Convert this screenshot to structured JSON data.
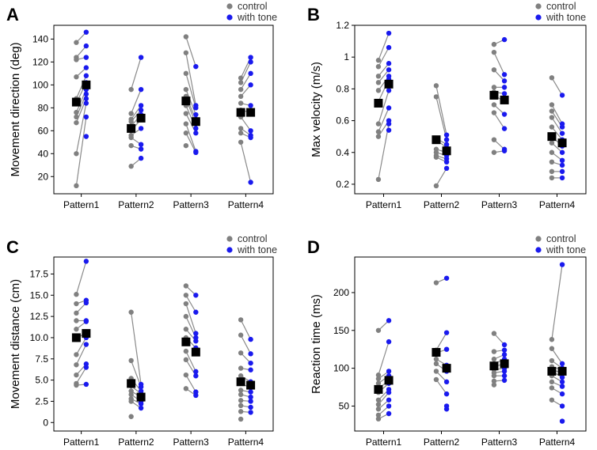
{
  "colors": {
    "control": "#808080",
    "tone": "#1a1aee",
    "mean": "#000000",
    "line": "#8a8a8a"
  },
  "chart_data": [
    {
      "type": "scatter",
      "panel_letter": "A",
      "ylabel": "Movement direction (deg)",
      "categories": [
        "Pattern1",
        "Pattern2",
        "Pattern3",
        "Pattern4"
      ],
      "ylim": [
        5,
        152
      ],
      "yticks": [
        20,
        40,
        60,
        80,
        100,
        120,
        140
      ],
      "legend": [
        "control",
        "with tone"
      ],
      "series": [
        {
          "name": "control",
          "values": [
            [
              137,
              124,
              122,
              107,
              88,
              84,
              76,
              72,
              67,
              40,
              12
            ],
            [
              96,
              75,
              70,
              68,
              64,
              60,
              56,
              54,
              47,
              29
            ],
            [
              142,
              128,
              110,
              96,
              90,
              88,
              82,
              75,
              66,
              58,
              47
            ],
            [
              106,
              102,
              96,
              90,
              84,
              78,
              72,
              62,
              58,
              50
            ]
          ]
        },
        {
          "name": "with tone",
          "values": [
            [
              146,
              134,
              124,
              115,
              108,
              102,
              96,
              92,
              88,
              84,
              72,
              55
            ],
            [
              124,
              96,
              82,
              78,
              74,
              70,
              62,
              48,
              44,
              36
            ],
            [
              116,
              82,
              80,
              74,
              70,
              66,
              62,
              58,
              42,
              41
            ],
            [
              124,
              120,
              110,
              100,
              82,
              76,
              60,
              56,
              54,
              15
            ]
          ]
        },
        {
          "name": "mean",
          "values": [
            [
              85,
              100
            ],
            [
              62,
              71
            ],
            [
              86,
              68
            ],
            [
              76,
              76
            ]
          ]
        }
      ]
    },
    {
      "type": "scatter",
      "panel_letter": "B",
      "ylabel": "Max velocity (m/s)",
      "categories": [
        "Pattern1",
        "Pattern2",
        "Pattern3",
        "Pattern4"
      ],
      "ylim": [
        0.14,
        1.2
      ],
      "yticks": [
        0.2,
        0.4,
        0.6,
        0.8,
        1.0,
        1.2
      ],
      "legend": [
        "control",
        "with tone"
      ],
      "series": [
        {
          "name": "control",
          "values": [
            [
              0.98,
              0.94,
              0.88,
              0.84,
              0.79,
              0.72,
              0.58,
              0.53,
              0.5,
              0.23
            ],
            [
              0.82,
              0.75,
              0.49,
              0.48,
              0.42,
              0.4,
              0.38,
              0.37,
              0.19
            ],
            [
              1.08,
              1.03,
              0.92,
              0.81,
              0.78,
              0.76,
              0.7,
              0.65,
              0.48,
              0.4
            ],
            [
              0.87,
              0.7,
              0.66,
              0.62,
              0.56,
              0.5,
              0.46,
              0.4,
              0.34,
              0.28,
              0.24
            ]
          ]
        },
        {
          "name": "with tone",
          "values": [
            [
              1.15,
              1.06,
              0.96,
              0.92,
              0.88,
              0.86,
              0.79,
              0.68,
              0.6,
              0.58,
              0.54
            ],
            [
              0.51,
              0.48,
              0.45,
              0.43,
              0.4,
              0.38,
              0.36,
              0.34,
              0.3
            ],
            [
              1.11,
              0.89,
              0.85,
              0.81,
              0.77,
              0.72,
              0.64,
              0.55,
              0.42,
              0.41
            ],
            [
              0.76,
              0.58,
              0.56,
              0.52,
              0.48,
              0.44,
              0.4,
              0.35,
              0.32,
              0.28,
              0.24
            ]
          ]
        },
        {
          "name": "mean",
          "values": [
            [
              0.71,
              0.83
            ],
            [
              0.48,
              0.41
            ],
            [
              0.76,
              0.73
            ],
            [
              0.5,
              0.46
            ]
          ]
        }
      ]
    },
    {
      "type": "scatter",
      "panel_letter": "C",
      "ylabel": "Movement distance (cm)",
      "categories": [
        "Pattern1",
        "Pattern2",
        "Pattern3",
        "Pattern4"
      ],
      "ylim": [
        -1,
        19.5
      ],
      "yticks": [
        0.0,
        2.5,
        5.0,
        7.5,
        10.0,
        12.5,
        15.0,
        17.5
      ],
      "ytick_labels": [
        "0",
        "2.5",
        "5.0",
        "7.5",
        "10.0",
        "12.5",
        "15.0",
        "17.5"
      ],
      "legend": [
        "control",
        "with tone"
      ],
      "series": [
        {
          "name": "control",
          "values": [
            [
              15.1,
              14.0,
              12.9,
              12.0,
              11.0,
              9.8,
              8.0,
              6.8,
              5.6,
              4.6,
              4.4
            ],
            [
              13.0,
              7.3,
              5.2,
              4.3,
              3.7,
              3.3,
              2.8,
              2.5,
              0.7
            ],
            [
              16.1,
              15.0,
              14.0,
              12.5,
              11.0,
              10.0,
              8.4,
              7.4,
              5.6,
              4.0
            ],
            [
              12.1,
              10.3,
              8.2,
              6.4,
              5.5,
              4.6,
              3.8,
              3.3,
              2.6,
              2.0,
              1.3,
              0.4
            ]
          ]
        },
        {
          "name": "with tone",
          "values": [
            [
              19.0,
              14.4,
              14.1,
              12.0,
              11.9,
              10.7,
              10.0,
              9.2,
              6.9,
              6.5,
              4.5
            ],
            [
              4.5,
              4.2,
              3.7,
              3.4,
              3.0,
              2.5,
              2.2,
              1.7
            ],
            [
              15.0,
              13.0,
              10.5,
              10.0,
              9.6,
              8.8,
              6.0,
              5.5,
              3.6,
              3.2
            ],
            [
              9.8,
              8.1,
              7.0,
              6.2,
              4.8,
              4.1,
              3.6,
              3.0,
              2.5,
              1.8,
              1.2
            ]
          ]
        },
        {
          "name": "mean",
          "values": [
            [
              10.0,
              10.5
            ],
            [
              4.6,
              3.0
            ],
            [
              9.5,
              8.3
            ],
            [
              4.8,
              4.4
            ]
          ]
        }
      ]
    },
    {
      "type": "scatter",
      "panel_letter": "D",
      "ylabel": "Reaction time (ms)",
      "categories": [
        "Pattern1",
        "Pattern2",
        "Pattern3",
        "Pattern4"
      ],
      "ylim": [
        17,
        247
      ],
      "yticks": [
        50,
        100,
        150,
        200
      ],
      "legend": [
        "control",
        "with tone"
      ],
      "series": [
        {
          "name": "control",
          "values": [
            [
              150,
              91,
              86,
              80,
              73,
              68,
              58,
              52,
              46,
              38,
              33
            ],
            [
              213,
              124,
              120,
              112,
              106,
              96,
              85
            ],
            [
              146,
              122,
              112,
              106,
              102,
              98,
              94,
              90,
              83,
              78
            ],
            [
              138,
              126,
              110,
              102,
              98,
              96,
              90,
              82,
              74,
              58
            ]
          ]
        },
        {
          "name": "with tone",
          "values": [
            [
              163,
              135,
              96,
              90,
              84,
              80,
              72,
              68,
              58,
              50,
              40
            ],
            [
              219,
              147,
              125,
              104,
              96,
              82,
              66,
              50,
              46
            ],
            [
              131,
              124,
              118,
              112,
              106,
              100,
              96,
              90,
              84
            ],
            [
              237,
              106,
              100,
              98,
              94,
              88,
              82,
              76,
              66,
              50,
              30
            ]
          ]
        },
        {
          "name": "mean",
          "values": [
            [
              72,
              84
            ],
            [
              121,
              100
            ],
            [
              103,
              106
            ],
            [
              96,
              96
            ]
          ]
        }
      ]
    }
  ]
}
